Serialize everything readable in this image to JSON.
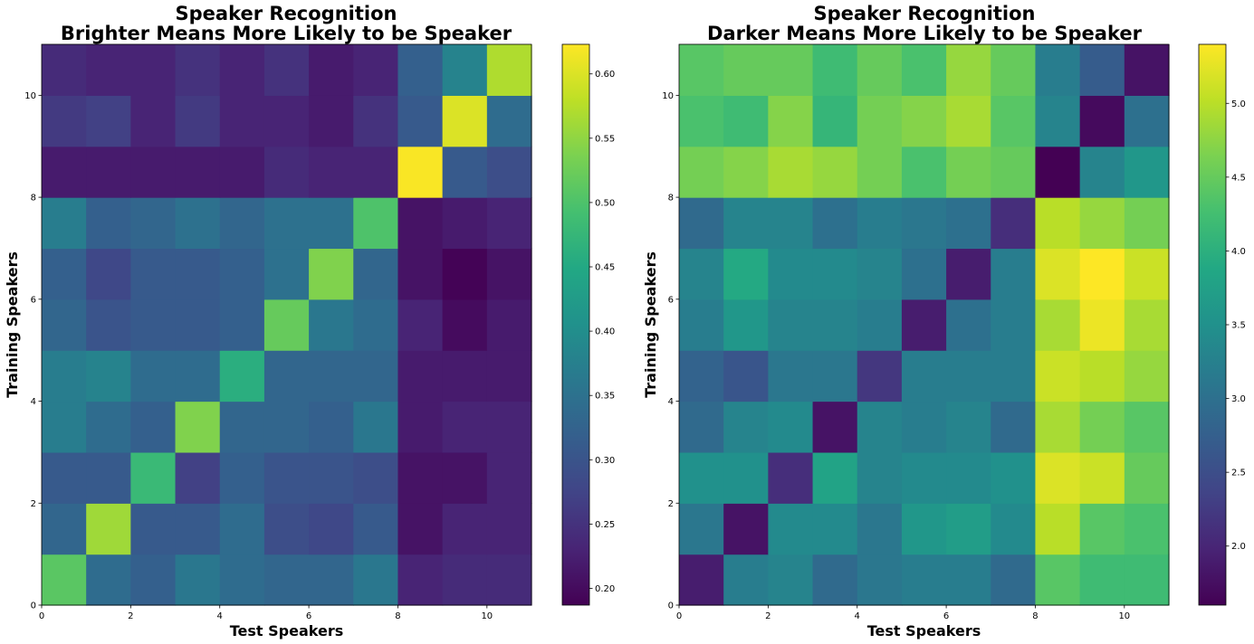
{
  "chart_data": [
    {
      "type": "heatmap",
      "title": [
        "Speaker Recognition",
        "Brighter Means More Likely to be Speaker"
      ],
      "xlabel": "Test Speakers",
      "ylabel": "Training Speakers",
      "xlim": [
        0,
        11
      ],
      "ylim": [
        0,
        11
      ],
      "xticks": [
        0,
        2,
        4,
        6,
        8,
        10
      ],
      "yticks": [
        0,
        2,
        4,
        6,
        8,
        10
      ],
      "colormap": "viridis",
      "colorbar": {
        "vmin": 0.187,
        "vmax": 0.623,
        "ticks": [
          0.2,
          0.25,
          0.3,
          0.35,
          0.4,
          0.45,
          0.5,
          0.55,
          0.6
        ],
        "tick_labels": [
          "0.20",
          "0.25",
          "0.30",
          "0.35",
          "0.40",
          "0.45",
          "0.50",
          "0.55",
          "0.60"
        ]
      },
      "rows_bottom_to_top": [
        [
          0.51,
          0.34,
          0.32,
          0.36,
          0.34,
          0.33,
          0.33,
          0.36,
          0.23,
          0.24,
          0.24
        ],
        [
          0.33,
          0.56,
          0.31,
          0.31,
          0.34,
          0.29,
          0.28,
          0.31,
          0.21,
          0.23,
          0.23
        ],
        [
          0.31,
          0.31,
          0.48,
          0.27,
          0.32,
          0.3,
          0.3,
          0.29,
          0.21,
          0.21,
          0.23
        ],
        [
          0.37,
          0.34,
          0.32,
          0.54,
          0.33,
          0.33,
          0.32,
          0.36,
          0.22,
          0.23,
          0.23
        ],
        [
          0.37,
          0.38,
          0.34,
          0.34,
          0.46,
          0.33,
          0.33,
          0.33,
          0.22,
          0.22,
          0.22
        ],
        [
          0.33,
          0.3,
          0.31,
          0.31,
          0.32,
          0.52,
          0.36,
          0.34,
          0.23,
          0.2,
          0.22
        ],
        [
          0.32,
          0.28,
          0.31,
          0.31,
          0.32,
          0.35,
          0.54,
          0.33,
          0.21,
          0.19,
          0.21
        ],
        [
          0.37,
          0.32,
          0.33,
          0.35,
          0.33,
          0.35,
          0.35,
          0.5,
          0.21,
          0.22,
          0.23
        ],
        [
          0.22,
          0.22,
          0.22,
          0.22,
          0.22,
          0.24,
          0.23,
          0.23,
          0.62,
          0.31,
          0.29
        ],
        [
          0.26,
          0.27,
          0.23,
          0.26,
          0.23,
          0.23,
          0.22,
          0.25,
          0.31,
          0.6,
          0.34
        ],
        [
          0.24,
          0.23,
          0.23,
          0.25,
          0.23,
          0.25,
          0.22,
          0.23,
          0.32,
          0.38,
          0.57
        ]
      ]
    },
    {
      "type": "heatmap",
      "title": [
        "Speaker Recognition",
        "Darker Means More Likely to be Speaker"
      ],
      "xlabel": "Test Speakers",
      "ylabel": "Training Speakers",
      "xlim": [
        0,
        11
      ],
      "ylim": [
        0,
        11
      ],
      "xticks": [
        0,
        2,
        4,
        6,
        8,
        10
      ],
      "yticks": [
        0,
        2,
        4,
        6,
        8,
        10
      ],
      "colormap": "viridis",
      "colorbar": {
        "vmin": 1.6,
        "vmax": 5.4,
        "ticks": [
          2.0,
          2.5,
          3.0,
          3.5,
          4.0,
          4.5,
          5.0
        ],
        "tick_labels": [
          "2.0",
          "2.5",
          "3.0",
          "3.5",
          "4.0",
          "4.5",
          "5.0"
        ]
      },
      "rows_bottom_to_top": [
        [
          1.9,
          3.2,
          3.3,
          2.9,
          3.1,
          3.2,
          3.2,
          2.9,
          4.4,
          4.2,
          4.2
        ],
        [
          3.1,
          1.8,
          3.4,
          3.4,
          3.1,
          3.6,
          3.7,
          3.4,
          5.0,
          4.4,
          4.3
        ],
        [
          3.5,
          3.5,
          2.1,
          3.8,
          3.3,
          3.4,
          3.4,
          3.5,
          5.2,
          5.1,
          4.5
        ],
        [
          2.9,
          3.3,
          3.4,
          1.8,
          3.3,
          3.2,
          3.3,
          2.9,
          4.9,
          4.6,
          4.4
        ],
        [
          2.8,
          2.6,
          3.1,
          3.1,
          2.2,
          3.2,
          3.2,
          3.2,
          5.1,
          5.0,
          4.8
        ],
        [
          3.2,
          3.6,
          3.3,
          3.3,
          3.2,
          1.9,
          3.0,
          3.2,
          4.9,
          5.3,
          4.9
        ],
        [
          3.3,
          3.9,
          3.4,
          3.4,
          3.3,
          3.0,
          1.9,
          3.2,
          5.2,
          5.4,
          5.1
        ],
        [
          2.9,
          3.3,
          3.3,
          3.0,
          3.2,
          3.1,
          3.0,
          2.1,
          5.0,
          4.8,
          4.6
        ],
        [
          4.6,
          4.7,
          4.9,
          4.8,
          4.6,
          4.3,
          4.6,
          4.5,
          1.6,
          3.3,
          3.6
        ],
        [
          4.3,
          4.2,
          4.7,
          4.1,
          4.6,
          4.7,
          4.9,
          4.4,
          3.3,
          1.7,
          3.0
        ],
        [
          4.4,
          4.5,
          4.5,
          4.2,
          4.5,
          4.3,
          4.8,
          4.5,
          3.2,
          2.7,
          1.8
        ]
      ]
    }
  ]
}
